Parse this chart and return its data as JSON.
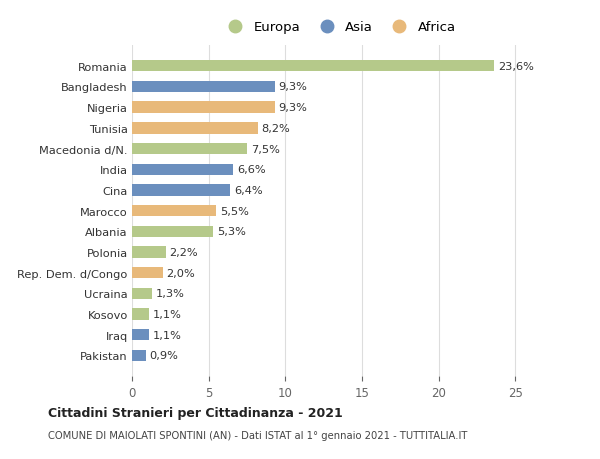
{
  "categories": [
    "Romania",
    "Bangladesh",
    "Nigeria",
    "Tunisia",
    "Macedonia d/N.",
    "India",
    "Cina",
    "Marocco",
    "Albania",
    "Polonia",
    "Rep. Dem. d/Congo",
    "Ucraina",
    "Kosovo",
    "Iraq",
    "Pakistan"
  ],
  "values": [
    23.6,
    9.3,
    9.3,
    8.2,
    7.5,
    6.6,
    6.4,
    5.5,
    5.3,
    2.2,
    2.0,
    1.3,
    1.1,
    1.1,
    0.9
  ],
  "labels": [
    "23,6%",
    "9,3%",
    "9,3%",
    "8,2%",
    "7,5%",
    "6,6%",
    "6,4%",
    "5,5%",
    "5,3%",
    "2,2%",
    "2,0%",
    "1,3%",
    "1,1%",
    "1,1%",
    "0,9%"
  ],
  "continents": [
    "Europa",
    "Asia",
    "Africa",
    "Africa",
    "Europa",
    "Asia",
    "Asia",
    "Africa",
    "Europa",
    "Europa",
    "Africa",
    "Europa",
    "Europa",
    "Asia",
    "Asia"
  ],
  "colors": {
    "Europa": "#b5c98a",
    "Asia": "#6b8fbe",
    "Africa": "#e8b97a"
  },
  "xlim": [
    0,
    27
  ],
  "xticks": [
    0,
    5,
    10,
    15,
    20,
    25
  ],
  "title": "Cittadini Stranieri per Cittadinanza - 2021",
  "subtitle": "COMUNE DI MAIOLATI SPONTINI (AN) - Dati ISTAT al 1° gennaio 2021 - TUTTITALIA.IT",
  "background_color": "#ffffff",
  "bar_height": 0.55
}
